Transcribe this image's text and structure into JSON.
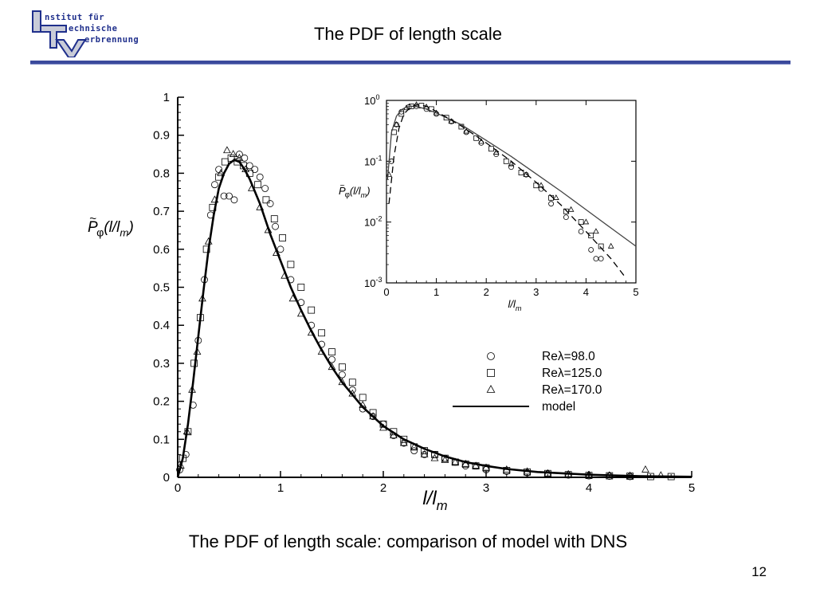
{
  "slide": {
    "title": "The PDF of length scale",
    "caption": "The PDF of length scale:  comparison of model with DNS",
    "page_number": "12"
  },
  "logo": {
    "lines": [
      "nstitut für",
      "echnische",
      "erbrennung"
    ],
    "initials": [
      "I",
      "T",
      "V"
    ],
    "color": "#1f2f8c"
  },
  "chart_data": [
    {
      "type": "scatter",
      "panel": "main",
      "xlabel": "l/l_m",
      "ylabel": "P̃φ(l/l_m)",
      "xlim": [
        0,
        5
      ],
      "ylim": [
        0,
        1
      ],
      "x_ticks": [
        "0",
        "1",
        "2",
        "3",
        "4",
        "5"
      ],
      "y_ticks": [
        "0",
        "0.1",
        "0.2",
        "0.3",
        "0.4",
        "0.5",
        "0.6",
        "0.7",
        "0.8",
        "0.9",
        "1"
      ],
      "grid": false,
      "legend": {
        "placement": "right",
        "entries": [
          {
            "marker": "circle",
            "label": "Reλ=98.0"
          },
          {
            "marker": "square",
            "label": "Reλ=125.0"
          },
          {
            "marker": "triangle",
            "label": "Reλ=170.0"
          },
          {
            "marker": "line",
            "label": "model"
          }
        ]
      },
      "series": [
        {
          "name": "Reλ=98.0",
          "marker": "circle",
          "x": [
            0.02,
            0.08,
            0.15,
            0.2,
            0.26,
            0.32,
            0.36,
            0.4,
            0.45,
            0.5,
            0.55,
            0.6,
            0.65,
            0.7,
            0.75,
            0.8,
            0.85,
            0.9,
            0.95,
            1.0,
            1.1,
            1.2,
            1.3,
            1.4,
            1.5,
            1.6,
            1.7,
            1.8,
            1.9,
            2.0,
            2.1,
            2.2,
            2.3,
            2.4,
            2.5,
            2.6,
            2.7,
            2.8,
            2.9,
            3.0,
            3.2,
            3.4,
            3.6,
            3.8,
            4.0,
            4.2,
            4.4
          ],
          "y": [
            0.02,
            0.06,
            0.19,
            0.36,
            0.52,
            0.69,
            0.77,
            0.81,
            0.74,
            0.74,
            0.73,
            0.85,
            0.84,
            0.82,
            0.81,
            0.79,
            0.76,
            0.72,
            0.66,
            0.6,
            0.52,
            0.46,
            0.4,
            0.35,
            0.31,
            0.27,
            0.23,
            0.18,
            0.16,
            0.14,
            0.11,
            0.09,
            0.07,
            0.06,
            0.06,
            0.05,
            0.04,
            0.03,
            0.03,
            0.02,
            0.016,
            0.012,
            0.009,
            0.006,
            0.004,
            0.003,
            0.002
          ]
        },
        {
          "name": "Reλ=125.0",
          "marker": "square",
          "x": [
            0.05,
            0.1,
            0.16,
            0.22,
            0.28,
            0.34,
            0.4,
            0.46,
            0.52,
            0.58,
            0.64,
            0.7,
            0.78,
            0.86,
            0.94,
            1.02,
            1.1,
            1.2,
            1.3,
            1.4,
            1.5,
            1.6,
            1.7,
            1.8,
            1.9,
            2.0,
            2.1,
            2.2,
            2.3,
            2.4,
            2.5,
            2.6,
            2.7,
            2.8,
            2.9,
            3.0,
            3.2,
            3.4,
            3.6,
            3.8,
            4.0,
            4.2,
            4.4,
            4.6,
            4.8
          ],
          "y": [
            0.05,
            0.12,
            0.3,
            0.42,
            0.6,
            0.71,
            0.79,
            0.83,
            0.84,
            0.83,
            0.82,
            0.8,
            0.77,
            0.73,
            0.68,
            0.63,
            0.56,
            0.5,
            0.44,
            0.38,
            0.33,
            0.29,
            0.25,
            0.21,
            0.17,
            0.14,
            0.12,
            0.1,
            0.08,
            0.07,
            0.06,
            0.05,
            0.04,
            0.035,
            0.03,
            0.025,
            0.018,
            0.014,
            0.01,
            0.007,
            0.005,
            0.004,
            0.003,
            0.002,
            0.002
          ]
        },
        {
          "name": "Reλ=170.0",
          "marker": "triangle",
          "x": [
            0.03,
            0.09,
            0.14,
            0.19,
            0.24,
            0.3,
            0.36,
            0.42,
            0.48,
            0.54,
            0.6,
            0.66,
            0.72,
            0.8,
            0.88,
            0.96,
            1.04,
            1.12,
            1.2,
            1.3,
            1.4,
            1.5,
            1.6,
            1.7,
            1.8,
            1.9,
            2.0,
            2.1,
            2.2,
            2.3,
            2.4,
            2.5,
            2.6,
            2.7,
            2.8,
            2.9,
            3.0,
            3.2,
            3.4,
            3.6,
            3.8,
            4.0,
            4.2,
            4.4,
            4.55,
            4.7
          ],
          "y": [
            0.03,
            0.12,
            0.23,
            0.33,
            0.47,
            0.62,
            0.73,
            0.8,
            0.86,
            0.85,
            0.84,
            0.81,
            0.76,
            0.71,
            0.65,
            0.59,
            0.53,
            0.47,
            0.43,
            0.38,
            0.33,
            0.29,
            0.25,
            0.22,
            0.19,
            0.16,
            0.13,
            0.11,
            0.09,
            0.08,
            0.06,
            0.05,
            0.045,
            0.04,
            0.035,
            0.03,
            0.025,
            0.02,
            0.015,
            0.01,
            0.008,
            0.006,
            0.005,
            0.004,
            0.02,
            0.005
          ]
        },
        {
          "name": "model",
          "marker": "line",
          "x": [
            0,
            0.05,
            0.1,
            0.15,
            0.2,
            0.25,
            0.3,
            0.35,
            0.4,
            0.45,
            0.5,
            0.55,
            0.6,
            0.65,
            0.7,
            0.8,
            0.9,
            1.0,
            1.1,
            1.2,
            1.3,
            1.4,
            1.5,
            1.6,
            1.8,
            2.0,
            2.2,
            2.4,
            2.6,
            2.8,
            3.0,
            3.2,
            3.5,
            4.0,
            4.5,
            5.0
          ],
          "y": [
            0,
            0.05,
            0.14,
            0.25,
            0.37,
            0.49,
            0.6,
            0.69,
            0.76,
            0.8,
            0.825,
            0.835,
            0.83,
            0.81,
            0.785,
            0.72,
            0.64,
            0.57,
            0.5,
            0.44,
            0.385,
            0.335,
            0.29,
            0.25,
            0.185,
            0.135,
            0.1,
            0.075,
            0.055,
            0.04,
            0.03,
            0.022,
            0.014,
            0.007,
            0.003,
            0.0015
          ]
        }
      ]
    },
    {
      "type": "scatter",
      "panel": "inset",
      "xlabel": "l/l_m",
      "ylabel": "P̃φ(l/l_m)",
      "xlim": [
        0,
        5
      ],
      "ylim": [
        0.001,
        1
      ],
      "yscale": "log",
      "x_ticks": [
        "0",
        "1",
        "2",
        "3",
        "4",
        "5"
      ],
      "y_ticks": [
        {
          "base": "10",
          "exp": "0"
        },
        {
          "base": "10",
          "exp": "-1"
        },
        {
          "base": "10",
          "exp": "-2"
        },
        {
          "base": "10",
          "exp": "-3"
        }
      ],
      "grid": false,
      "series": [
        {
          "name": "Reλ=98.0",
          "marker": "circle",
          "x": [
            0.1,
            0.2,
            0.3,
            0.45,
            0.6,
            0.8,
            1.0,
            1.3,
            1.6,
            1.9,
            2.2,
            2.5,
            2.8,
            3.1,
            3.3,
            3.6,
            3.9,
            4.1,
            4.2,
            4.3
          ],
          "y": [
            0.1,
            0.4,
            0.65,
            0.78,
            0.8,
            0.72,
            0.6,
            0.45,
            0.3,
            0.2,
            0.13,
            0.08,
            0.06,
            0.035,
            0.02,
            0.012,
            0.007,
            0.0035,
            0.0025,
            0.0025
          ]
        },
        {
          "name": "Reλ=125.0",
          "marker": "square",
          "x": [
            0.15,
            0.3,
            0.5,
            0.7,
            0.9,
            1.2,
            1.5,
            1.8,
            2.1,
            2.4,
            2.7,
            3.0,
            3.3,
            3.6,
            3.9,
            4.1,
            4.3
          ],
          "y": [
            0.3,
            0.6,
            0.8,
            0.82,
            0.72,
            0.52,
            0.37,
            0.24,
            0.16,
            0.1,
            0.065,
            0.04,
            0.025,
            0.015,
            0.01,
            0.006,
            0.004
          ]
        },
        {
          "name": "Reλ=170.0",
          "marker": "triangle",
          "x": [
            0.05,
            0.2,
            0.4,
            0.6,
            0.8,
            1.0,
            1.3,
            1.6,
            1.9,
            2.2,
            2.5,
            2.8,
            3.1,
            3.4,
            3.7,
            4.0,
            4.2,
            4.5
          ],
          "y": [
            0.06,
            0.4,
            0.75,
            0.85,
            0.78,
            0.62,
            0.45,
            0.31,
            0.21,
            0.14,
            0.09,
            0.06,
            0.04,
            0.025,
            0.016,
            0.01,
            0.007,
            0.004
          ]
        },
        {
          "name": "model (solid)",
          "marker": "line",
          "x": [
            0.02,
            0.1,
            0.2,
            0.3,
            0.4,
            0.5,
            0.6,
            0.8,
            1.0,
            1.5,
            2.0,
            2.5,
            3.0,
            3.5,
            4.0,
            4.5,
            5.0
          ],
          "y": [
            0.05,
            0.3,
            0.55,
            0.7,
            0.78,
            0.8,
            0.79,
            0.72,
            0.62,
            0.4,
            0.22,
            0.12,
            0.062,
            0.032,
            0.016,
            0.008,
            0.004
          ]
        },
        {
          "name": "model (dashed)",
          "marker": "dashed",
          "x": [
            0.05,
            0.15,
            0.25,
            0.35,
            0.5,
            0.65,
            0.8,
            1.0,
            1.5,
            2.0,
            2.5,
            3.0,
            3.5,
            4.0,
            4.5,
            4.8
          ],
          "y": [
            0.02,
            0.12,
            0.35,
            0.6,
            0.8,
            0.85,
            0.8,
            0.66,
            0.38,
            0.2,
            0.1,
            0.045,
            0.019,
            0.007,
            0.0025,
            0.0012
          ]
        }
      ]
    }
  ]
}
